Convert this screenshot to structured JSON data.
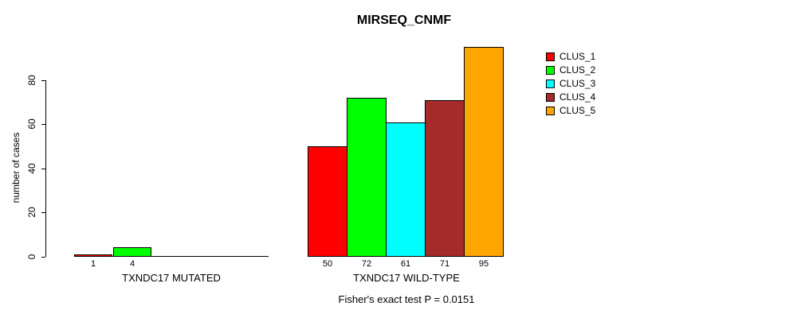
{
  "chart_data": {
    "type": "bar",
    "title": "MIRSEQ_CNMF",
    "xlabel": "",
    "ylabel": "number of cases",
    "ylim": [
      0,
      95
    ],
    "yticks": [
      0,
      20,
      40,
      60,
      80
    ],
    "grid": false,
    "bar_value_labels_shown": true,
    "groups": [
      {
        "label": "TXNDC17 MUTATED",
        "categories": [
          "CLUS_1",
          "CLUS_2"
        ],
        "values": [
          1,
          4
        ]
      },
      {
        "label": "TXNDC17 WILD-TYPE",
        "categories": [
          "CLUS_1",
          "CLUS_2",
          "CLUS_3",
          "CLUS_4",
          "CLUS_5"
        ],
        "values": [
          50,
          72,
          61,
          71,
          95
        ]
      }
    ],
    "legend": {
      "position": "right",
      "entries": [
        {
          "label": "CLUS_1",
          "color": "#FF0000"
        },
        {
          "label": "CLUS_2",
          "color": "#00FF00"
        },
        {
          "label": "CLUS_3",
          "color": "#00FFFF"
        },
        {
          "label": "CLUS_4",
          "color": "#A52A2A"
        },
        {
          "label": "CLUS_5",
          "color": "#FFA500"
        }
      ]
    },
    "annotation": "Fisher's exact test P = 0.0151"
  }
}
